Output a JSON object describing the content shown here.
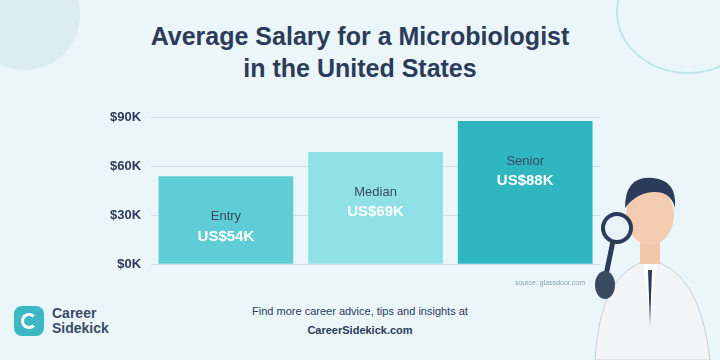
{
  "chart_data": {
    "type": "bar",
    "title": [
      "Average Salary for a Microbiologist",
      "in the United States"
    ],
    "categories": [
      "Entry",
      "Median",
      "Senior"
    ],
    "values": [
      54,
      69,
      88
    ],
    "value_labels": [
      "US$54K",
      "US$69K",
      "US$88K"
    ],
    "colors": [
      "#5fcdd6",
      "#8fe0e7",
      "#2fb6c1"
    ],
    "ylim": [
      0,
      90
    ],
    "yticks": [
      {
        "value": 0,
        "label": "$0K"
      },
      {
        "value": 30,
        "label": "$30K"
      },
      {
        "value": 60,
        "label": "$60K"
      },
      {
        "value": 90,
        "label": "$90K"
      }
    ],
    "grid": true,
    "data_labels": true,
    "tick_labels": "y",
    "source": "source: glassdoor.com"
  },
  "footer": {
    "text": "Find more career advice, tips and insights at",
    "link": "CareerSidekick.com"
  },
  "brand": "Career Sidekick"
}
